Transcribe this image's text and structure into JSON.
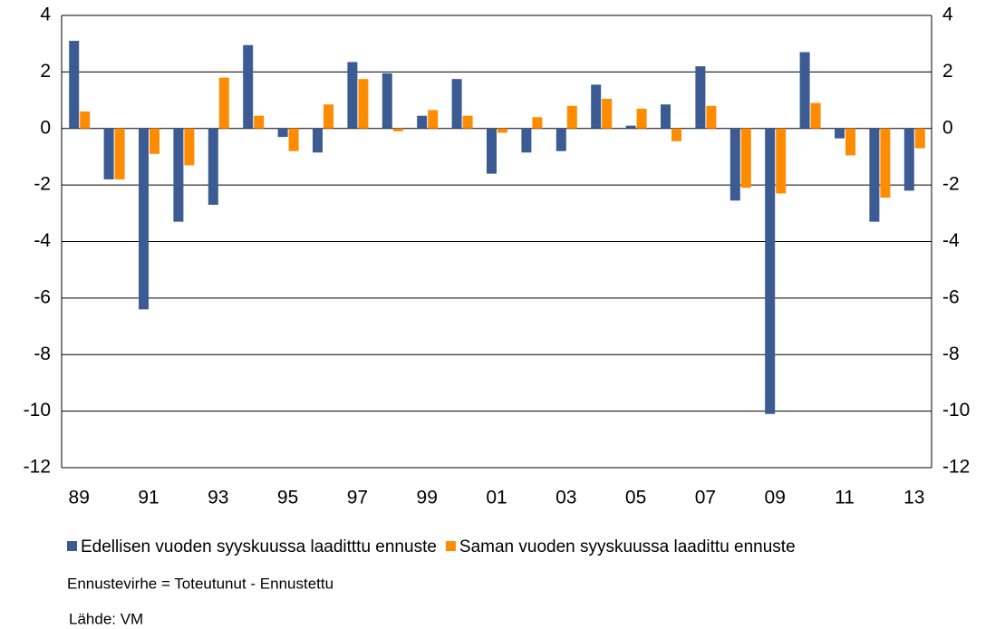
{
  "chart_data": {
    "type": "bar",
    "categories": [
      "89",
      null,
      "91",
      null,
      "93",
      null,
      "95",
      null,
      "97",
      null,
      "99",
      null,
      "01",
      null,
      "03",
      null,
      "05",
      null,
      "07",
      null,
      "09",
      null,
      "11",
      null,
      "13"
    ],
    "series": [
      {
        "name": "Edellisen vuoden syyskuussa laaditttu ennuste",
        "color": "#3b5b92",
        "values": [
          3.1,
          -1.8,
          -6.4,
          -3.3,
          -2.7,
          2.95,
          -0.3,
          -0.85,
          2.35,
          1.95,
          0.45,
          1.75,
          -1.6,
          -0.85,
          -0.8,
          1.55,
          0.1,
          0.85,
          2.2,
          -2.55,
          -10.1,
          2.7,
          -0.35,
          -3.3,
          -2.2
        ]
      },
      {
        "name": "Saman vuoden syyskuussa laadittu ennuste",
        "color": "#ff8c00",
        "values": [
          0.6,
          -1.8,
          -0.9,
          -1.3,
          1.8,
          0.45,
          -0.8,
          0.85,
          1.75,
          -0.1,
          0.65,
          0.45,
          -0.15,
          0.4,
          0.8,
          1.05,
          0.7,
          -0.45,
          0.8,
          -2.1,
          -2.3,
          0.9,
          -0.95,
          -2.45,
          -0.7
        ]
      }
    ],
    "ylim": [
      -12,
      4
    ],
    "yticks": [
      -12,
      -10,
      -8,
      -6,
      -4,
      -2,
      0,
      2,
      4
    ],
    "y2lim": [
      -12,
      4
    ],
    "y2ticks": [
      -12,
      -10,
      -8,
      -6,
      -4,
      -2,
      0,
      2,
      4
    ],
    "grid": true,
    "legend": "bottom",
    "annotation": "Ennustevirhe = Toteutunut - Ennustettu",
    "source": "Lähde: VM"
  }
}
